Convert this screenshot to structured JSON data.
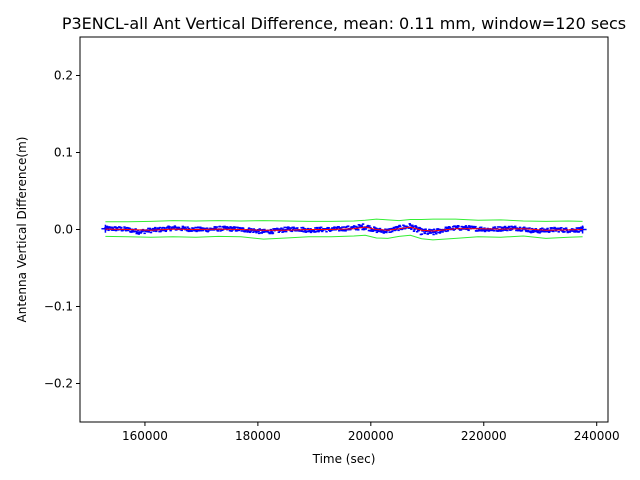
{
  "chart_data": {
    "type": "line",
    "title": "P3ENCL-all Ant Vertical Difference, mean: 0.11 mm, window=120 secs",
    "xlabel": "Time (sec)",
    "ylabel": "Antenna Vertical Difference(m)",
    "xlim": [
      148500,
      242000
    ],
    "ylim": [
      -0.25,
      0.25
    ],
    "xticks": [
      160000,
      180000,
      200000,
      220000,
      240000
    ],
    "xtick_labels": [
      "160000",
      "180000",
      "200000",
      "220000",
      "240000"
    ],
    "yticks": [
      -0.2,
      -0.1,
      0.0,
      0.1,
      0.2
    ],
    "ytick_labels": [
      "−0.2",
      "−0.1",
      "0.0",
      "0.1",
      "0.2"
    ],
    "grid": false,
    "series": [
      {
        "color": "#0000ff",
        "style": "points",
        "x": [
          153000,
          155000,
          157000,
          159000,
          161000,
          163000,
          165000,
          167000,
          169000,
          171000,
          173000,
          175000,
          177000,
          179000,
          181000,
          183000,
          185000,
          187000,
          189000,
          191000,
          193000,
          195000,
          197000,
          199000,
          201000,
          203000,
          205000,
          207000,
          209000,
          211000,
          213000,
          215000,
          217000,
          219000,
          221000,
          223000,
          225000,
          227000,
          229000,
          231000,
          233000,
          235000,
          237500
        ],
        "y": [
          0.001,
          0.001,
          0.0,
          -0.003,
          -0.001,
          0.0,
          0.002,
          0.001,
          0.0,
          0.0,
          0.001,
          0.001,
          0.0,
          -0.001,
          -0.003,
          -0.002,
          0.0,
          0.001,
          -0.001,
          0.0,
          0.0,
          0.001,
          0.002,
          0.004,
          -0.001,
          -0.002,
          0.002,
          0.004,
          -0.003,
          -0.004,
          0.0,
          0.002,
          0.002,
          0.001,
          0.0,
          0.001,
          0.002,
          0.001,
          -0.002,
          -0.001,
          0.0,
          -0.001,
          0.0
        ],
        "spread": [
          0.003,
          0.003,
          0.003,
          0.003,
          0.003,
          0.003,
          0.003,
          0.003,
          0.003,
          0.003,
          0.003,
          0.003,
          0.003,
          0.003,
          0.003,
          0.003,
          0.003,
          0.003,
          0.003,
          0.003,
          0.003,
          0.003,
          0.003,
          0.004,
          0.003,
          0.003,
          0.003,
          0.004,
          0.004,
          0.004,
          0.003,
          0.003,
          0.003,
          0.003,
          0.003,
          0.003,
          0.003,
          0.003,
          0.003,
          0.003,
          0.003,
          0.003,
          0.003
        ]
      },
      {
        "color": "#ff0000",
        "style": "line",
        "x": [
          153000,
          157000,
          161000,
          165000,
          169000,
          173000,
          177000,
          181000,
          185000,
          189000,
          193000,
          197000,
          199000,
          201000,
          203000,
          205000,
          207000,
          209000,
          211000,
          215000,
          219000,
          223000,
          227000,
          231000,
          235000,
          237500
        ],
        "y": [
          0.0005,
          0.0,
          -0.001,
          0.0005,
          0.0,
          0.0005,
          0.0,
          -0.001,
          -0.001,
          0.0,
          0.0,
          0.001,
          0.003,
          0.0,
          -0.001,
          0.001,
          0.003,
          -0.001,
          -0.002,
          0.001,
          0.001,
          0.0005,
          0.001,
          -0.001,
          -0.0005,
          0.0
        ]
      },
      {
        "color": "#33ee33",
        "style": "line",
        "x": [
          153000,
          157000,
          161000,
          165000,
          169000,
          173000,
          177000,
          181000,
          185000,
          189000,
          193000,
          197000,
          199000,
          201000,
          203000,
          205000,
          207000,
          209000,
          211000,
          215000,
          219000,
          223000,
          227000,
          231000,
          235000,
          237500
        ],
        "y": [
          0.01,
          0.01,
          0.0105,
          0.0115,
          0.011,
          0.0115,
          0.011,
          0.0115,
          0.011,
          0.0105,
          0.0105,
          0.011,
          0.012,
          0.0135,
          0.0125,
          0.0115,
          0.013,
          0.013,
          0.0135,
          0.0135,
          0.012,
          0.0125,
          0.011,
          0.0105,
          0.011,
          0.0105
        ]
      },
      {
        "color": "#33ee33",
        "style": "line",
        "x": [
          153000,
          157000,
          161000,
          165000,
          169000,
          173000,
          177000,
          181000,
          185000,
          189000,
          193000,
          197000,
          199000,
          201000,
          203000,
          205000,
          207000,
          209000,
          211000,
          215000,
          219000,
          223000,
          227000,
          231000,
          235000,
          237500
        ],
        "y": [
          -0.009,
          -0.0095,
          -0.01,
          -0.0095,
          -0.01,
          -0.009,
          -0.0095,
          -0.0125,
          -0.011,
          -0.0095,
          -0.0095,
          -0.0085,
          -0.0075,
          -0.011,
          -0.0115,
          -0.009,
          -0.0075,
          -0.012,
          -0.0135,
          -0.0115,
          -0.0095,
          -0.01,
          -0.0085,
          -0.0115,
          -0.01,
          -0.0095
        ]
      }
    ]
  }
}
